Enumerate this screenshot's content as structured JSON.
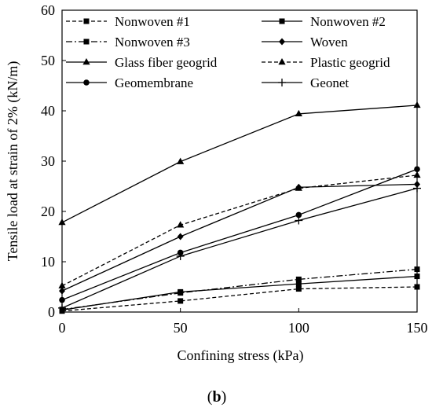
{
  "chart_data": {
    "type": "line",
    "title": "",
    "xlabel": "Confining stress (kPa)",
    "ylabel": "Tensile load at strain of 2% (kN/m)",
    "x": [
      0,
      50,
      100,
      150
    ],
    "xticks": [
      "0",
      "50",
      "100",
      "150"
    ],
    "yticks": [
      "0",
      "10",
      "20",
      "30",
      "40",
      "50",
      "60"
    ],
    "xlim": [
      0,
      150
    ],
    "ylim": [
      0,
      60
    ],
    "grid": false,
    "legend_position": "top",
    "panel_label": "b",
    "series": [
      {
        "name": "Nonwoven #1",
        "marker": "square",
        "dash": "dashed",
        "values": [
          0.2,
          2.2,
          4.6,
          5.0
        ]
      },
      {
        "name": "Nonwoven #2",
        "marker": "square",
        "dash": "solid",
        "values": [
          0.4,
          4.0,
          5.6,
          7.1
        ]
      },
      {
        "name": "Nonwoven #3",
        "marker": "square",
        "dash": "dashdot",
        "values": [
          0.5,
          3.8,
          6.5,
          8.5
        ]
      },
      {
        "name": "Woven",
        "marker": "diamond",
        "dash": "solid",
        "values": [
          4.2,
          15.0,
          24.8,
          25.4
        ]
      },
      {
        "name": "Glass fiber geogrid",
        "marker": "triangle",
        "dash": "solid",
        "values": [
          17.8,
          29.9,
          39.4,
          41.1
        ]
      },
      {
        "name": "Plastic geogrid",
        "marker": "triangle",
        "dash": "dashed",
        "values": [
          5.2,
          17.3,
          24.6,
          27.2
        ]
      },
      {
        "name": "Geomembrane",
        "marker": "circle",
        "dash": "solid",
        "values": [
          2.4,
          11.8,
          19.3,
          28.4
        ]
      },
      {
        "name": "Geonet",
        "marker": "plus",
        "dash": "solid",
        "values": [
          0.8,
          11.1,
          18.2,
          24.6
        ]
      }
    ]
  }
}
